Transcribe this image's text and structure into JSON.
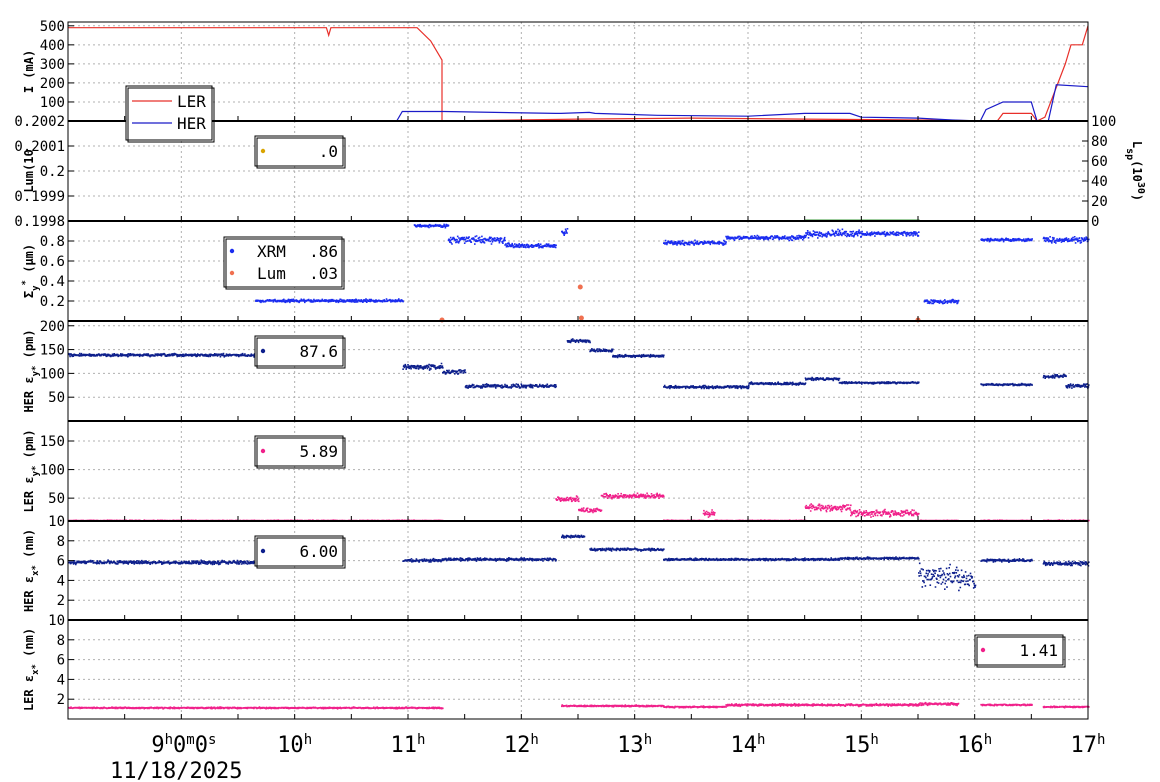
{
  "colors": {
    "ler": "#e8302a",
    "her": "#1b1bc8",
    "xrm": "#1a2cf0",
    "lum": "#f07050",
    "navy": "#0d1f8c",
    "pink": "#f0208a",
    "gold": "#d9a400",
    "green": "#3a9a3a"
  },
  "chart_data": {
    "type": "scatter",
    "x_axis": {
      "range_hours": [
        8,
        17
      ],
      "ticks": [
        {
          "hour": 9,
          "label": "9",
          "sup": "h",
          "extra": "0",
          "extra_sup": "m",
          "extra2": "0",
          "extra2_sup": "s"
        },
        {
          "hour": 10,
          "label": "10",
          "sup": "h"
        },
        {
          "hour": 11,
          "label": "11",
          "sup": "h"
        },
        {
          "hour": 12,
          "label": "12",
          "sup": "h"
        },
        {
          "hour": 13,
          "label": "13",
          "sup": "h"
        },
        {
          "hour": 14,
          "label": "14",
          "sup": "h"
        },
        {
          "hour": 15,
          "label": "15",
          "sup": "h"
        },
        {
          "hour": 16,
          "label": "16",
          "sup": "h"
        },
        {
          "hour": 17,
          "label": "17",
          "sup": "h"
        }
      ],
      "date_label": "11/18/2025",
      "grid": true
    },
    "panels": [
      {
        "id": "current",
        "ylabel": "I (mA)",
        "ylim": [
          0,
          520
        ],
        "yticks": [
          "100",
          "200",
          "300",
          "400",
          "500"
        ],
        "legend": {
          "position": "bottom-left",
          "entries": [
            {
              "name": "LER",
              "color": "ler"
            },
            {
              "name": "HER",
              "color": "her"
            }
          ]
        },
        "series": [
          {
            "name": "LER",
            "style": "line",
            "color": "ler",
            "x": [
              8.0,
              10.28,
              10.3,
              10.32,
              11.08,
              11.2,
              11.3,
              11.3,
              12.5,
              13.5,
              14.5,
              15.5,
              16.2,
              16.25,
              16.5,
              16.55,
              16.62,
              16.8,
              16.85,
              16.95,
              17.0
            ],
            "y": [
              490,
              490,
              450,
              490,
              490,
              420,
              320,
              0,
              10,
              15,
              10,
              5,
              0,
              40,
              40,
              0,
              20,
              300,
              400,
              400,
              500
            ]
          },
          {
            "name": "HER",
            "style": "line",
            "color": "her",
            "x": [
              8.0,
              10.9,
              10.95,
              11.3,
              11.32,
              12.3,
              12.35,
              12.6,
              12.65,
              13.2,
              14.0,
              14.5,
              14.9,
              15.0,
              15.5,
              15.8,
              16.05,
              16.1,
              16.25,
              16.5,
              16.55,
              16.65,
              16.72,
              17.0
            ],
            "y": [
              0,
              0,
              50,
              50,
              50,
              40,
              40,
              45,
              40,
              30,
              25,
              40,
              40,
              20,
              15,
              5,
              0,
              60,
              100,
              100,
              0,
              0,
              190,
              180
            ]
          }
        ]
      },
      {
        "id": "luminosity",
        "ylabel": "Lum(10",
        "ylim": [
          0.1998,
          0.2002
        ],
        "yticks": [
          "0.1998",
          "0.1999",
          "0.2",
          "0.2001",
          "0.2002"
        ],
        "right_axis": {
          "label": "L",
          "label_sub": "sp",
          "label_rest": "(10",
          "label_sup": "30",
          "label_end": ")",
          "ylim": [
            0,
            100
          ],
          "yticks": [
            "0",
            "20",
            "40",
            "60",
            "80",
            "100"
          ]
        },
        "legend": {
          "value": ".0",
          "color": "gold"
        },
        "series": [
          {
            "name": "Lsp",
            "color": "green",
            "style": "dots",
            "right_axis": true,
            "segments": [
              [
                8.0,
                11.3,
                0.5
              ],
              [
                12.3,
                13.0,
                1.0
              ],
              [
                14.5,
                15.5,
                1.5
              ]
            ]
          }
        ]
      },
      {
        "id": "sigma",
        "ylabel": "Σ",
        "ylabel_sub": "y",
        "ylabel_sup": "*",
        "ylabel_rest": " (μm)",
        "ylim": [
          0,
          1.0
        ],
        "yticks": [
          "0.2",
          "0.4",
          "0.6",
          "0.8"
        ],
        "legend": {
          "entries": [
            {
              "name": "XRM",
              "value": ".86",
              "color": "xrm"
            },
            {
              "name": "Lum",
              "value": ".03",
              "color": "lum"
            }
          ]
        },
        "series": [
          {
            "name": "XRM",
            "color": "xrm",
            "style": "dots",
            "segments": [
              [
                9.65,
                10.95,
                0.21,
                0.02
              ],
              [
                11.05,
                11.35,
                0.96,
                0.02
              ],
              [
                11.35,
                11.85,
                0.82,
                0.05
              ],
              [
                11.85,
                12.3,
                0.76,
                0.03
              ],
              [
                12.35,
                12.4,
                0.9,
                0.05
              ],
              [
                13.25,
                13.8,
                0.79,
                0.03
              ],
              [
                13.8,
                14.5,
                0.84,
                0.03
              ],
              [
                14.5,
                15.0,
                0.88,
                0.05
              ],
              [
                15.0,
                15.5,
                0.88,
                0.03
              ],
              [
                15.55,
                15.85,
                0.2,
                0.03
              ],
              [
                16.05,
                16.5,
                0.82,
                0.02
              ],
              [
                16.6,
                17.0,
                0.82,
                0.04
              ]
            ]
          },
          {
            "name": "Lum",
            "color": "lum",
            "style": "markers",
            "x": [
              11.3,
              12.52,
              12.53,
              15.5
            ],
            "y": [
              0.01,
              0.34,
              0.03,
              0.01
            ]
          }
        ]
      },
      {
        "id": "her_ey",
        "ylabel": "HER ε",
        "ylabel_sub": "y*",
        "ylabel_rest": " (pm)",
        "ylim": [
          0,
          210
        ],
        "yticks": [
          "50",
          "100",
          "150",
          "200"
        ],
        "legend": {
          "value": "87.6",
          "color": "navy"
        },
        "series": [
          {
            "name": "HER εy*",
            "color": "navy",
            "style": "dots",
            "segments": [
              [
                8.0,
                9.65,
                140,
                4
              ],
              [
                9.65,
                9.7,
                138,
                4
              ],
              [
                10.95,
                11.3,
                115,
                8
              ],
              [
                11.3,
                11.5,
                105,
                6
              ],
              [
                11.5,
                12.0,
                75,
                6
              ],
              [
                12.0,
                12.3,
                75,
                5
              ],
              [
                12.4,
                12.6,
                170,
                5
              ],
              [
                12.6,
                12.8,
                150,
                4
              ],
              [
                12.8,
                13.25,
                138,
                4
              ],
              [
                13.25,
                14.0,
                73,
                4
              ],
              [
                14.0,
                14.5,
                80,
                4
              ],
              [
                14.5,
                14.8,
                90,
                4
              ],
              [
                14.8,
                15.5,
                82,
                3
              ],
              [
                16.05,
                16.5,
                78,
                3
              ],
              [
                16.6,
                16.8,
                95,
                5
              ],
              [
                16.8,
                17.0,
                75,
                6
              ]
            ]
          }
        ]
      },
      {
        "id": "ler_ey",
        "ylabel": "LER ε",
        "ylabel_sub": "y*",
        "ylabel_rest": " (pm)",
        "ylim": [
          10,
          185
        ],
        "yticks": [
          "10",
          "50",
          "100",
          "150"
        ],
        "legend": {
          "value": "5.89",
          "color": "pink"
        },
        "series": [
          {
            "name": "LER εy*",
            "color": "pink",
            "style": "dots",
            "segments": [
              [
                8.0,
                11.3,
                12,
                1
              ],
              [
                12.3,
                12.5,
                50,
                6
              ],
              [
                12.5,
                12.7,
                30,
                5
              ],
              [
                12.7,
                13.25,
                55,
                6
              ],
              [
                13.25,
                13.6,
                12,
                1
              ],
              [
                13.6,
                13.7,
                25,
                8
              ],
              [
                13.7,
                14.5,
                12,
                1
              ],
              [
                14.5,
                14.9,
                35,
                8
              ],
              [
                14.9,
                15.5,
                25,
                8
              ],
              [
                15.5,
                15.85,
                12,
                1
              ],
              [
                16.05,
                16.5,
                12,
                1
              ],
              [
                16.6,
                17.0,
                12,
                1
              ]
            ]
          }
        ]
      },
      {
        "id": "her_ex",
        "ylabel": "HER ε",
        "ylabel_sub": "x*",
        "ylabel_rest": " (nm)",
        "ylim": [
          0,
          10
        ],
        "yticks": [
          "2",
          "4",
          "6",
          "8"
        ],
        "legend": {
          "value": "6.00",
          "color": "navy"
        },
        "series": [
          {
            "name": "HER εx*",
            "color": "navy",
            "style": "dots",
            "segments": [
              [
                8.0,
                9.65,
                5.9,
                0.25
              ],
              [
                10.95,
                11.3,
                6.1,
                0.2
              ],
              [
                11.3,
                12.3,
                6.2,
                0.2
              ],
              [
                12.35,
                12.55,
                8.5,
                0.2
              ],
              [
                12.6,
                13.25,
                7.2,
                0.2
              ],
              [
                13.25,
                14.8,
                6.2,
                0.15
              ],
              [
                14.8,
                15.5,
                6.3,
                0.15
              ],
              [
                15.5,
                15.85,
                4.5,
                1.6
              ],
              [
                15.85,
                16.0,
                4.0,
                1.6
              ],
              [
                16.05,
                16.5,
                6.1,
                0.2
              ],
              [
                16.6,
                17.0,
                5.8,
                0.3
              ]
            ]
          }
        ]
      },
      {
        "id": "ler_ex",
        "ylabel": "LER ε",
        "ylabel_sub": "x*",
        "ylabel_rest": " (nm)",
        "ylim": [
          0,
          10
        ],
        "yticks": [
          "2",
          "4",
          "6",
          "8",
          "10"
        ],
        "legend": {
          "value": "1.41",
          "color": "pink"
        },
        "series": [
          {
            "name": "LER εx*",
            "color": "pink",
            "style": "dots",
            "segments": [
              [
                8.0,
                11.3,
                1.2,
                0.1
              ],
              [
                12.35,
                13.25,
                1.4,
                0.1
              ],
              [
                13.25,
                13.8,
                1.3,
                0.1
              ],
              [
                13.8,
                14.5,
                1.5,
                0.15
              ],
              [
                14.5,
                15.5,
                1.5,
                0.15
              ],
              [
                15.5,
                15.85,
                1.6,
                0.2
              ],
              [
                16.05,
                16.5,
                1.5,
                0.1
              ],
              [
                16.6,
                17.0,
                1.3,
                0.1
              ]
            ]
          }
        ]
      }
    ]
  }
}
